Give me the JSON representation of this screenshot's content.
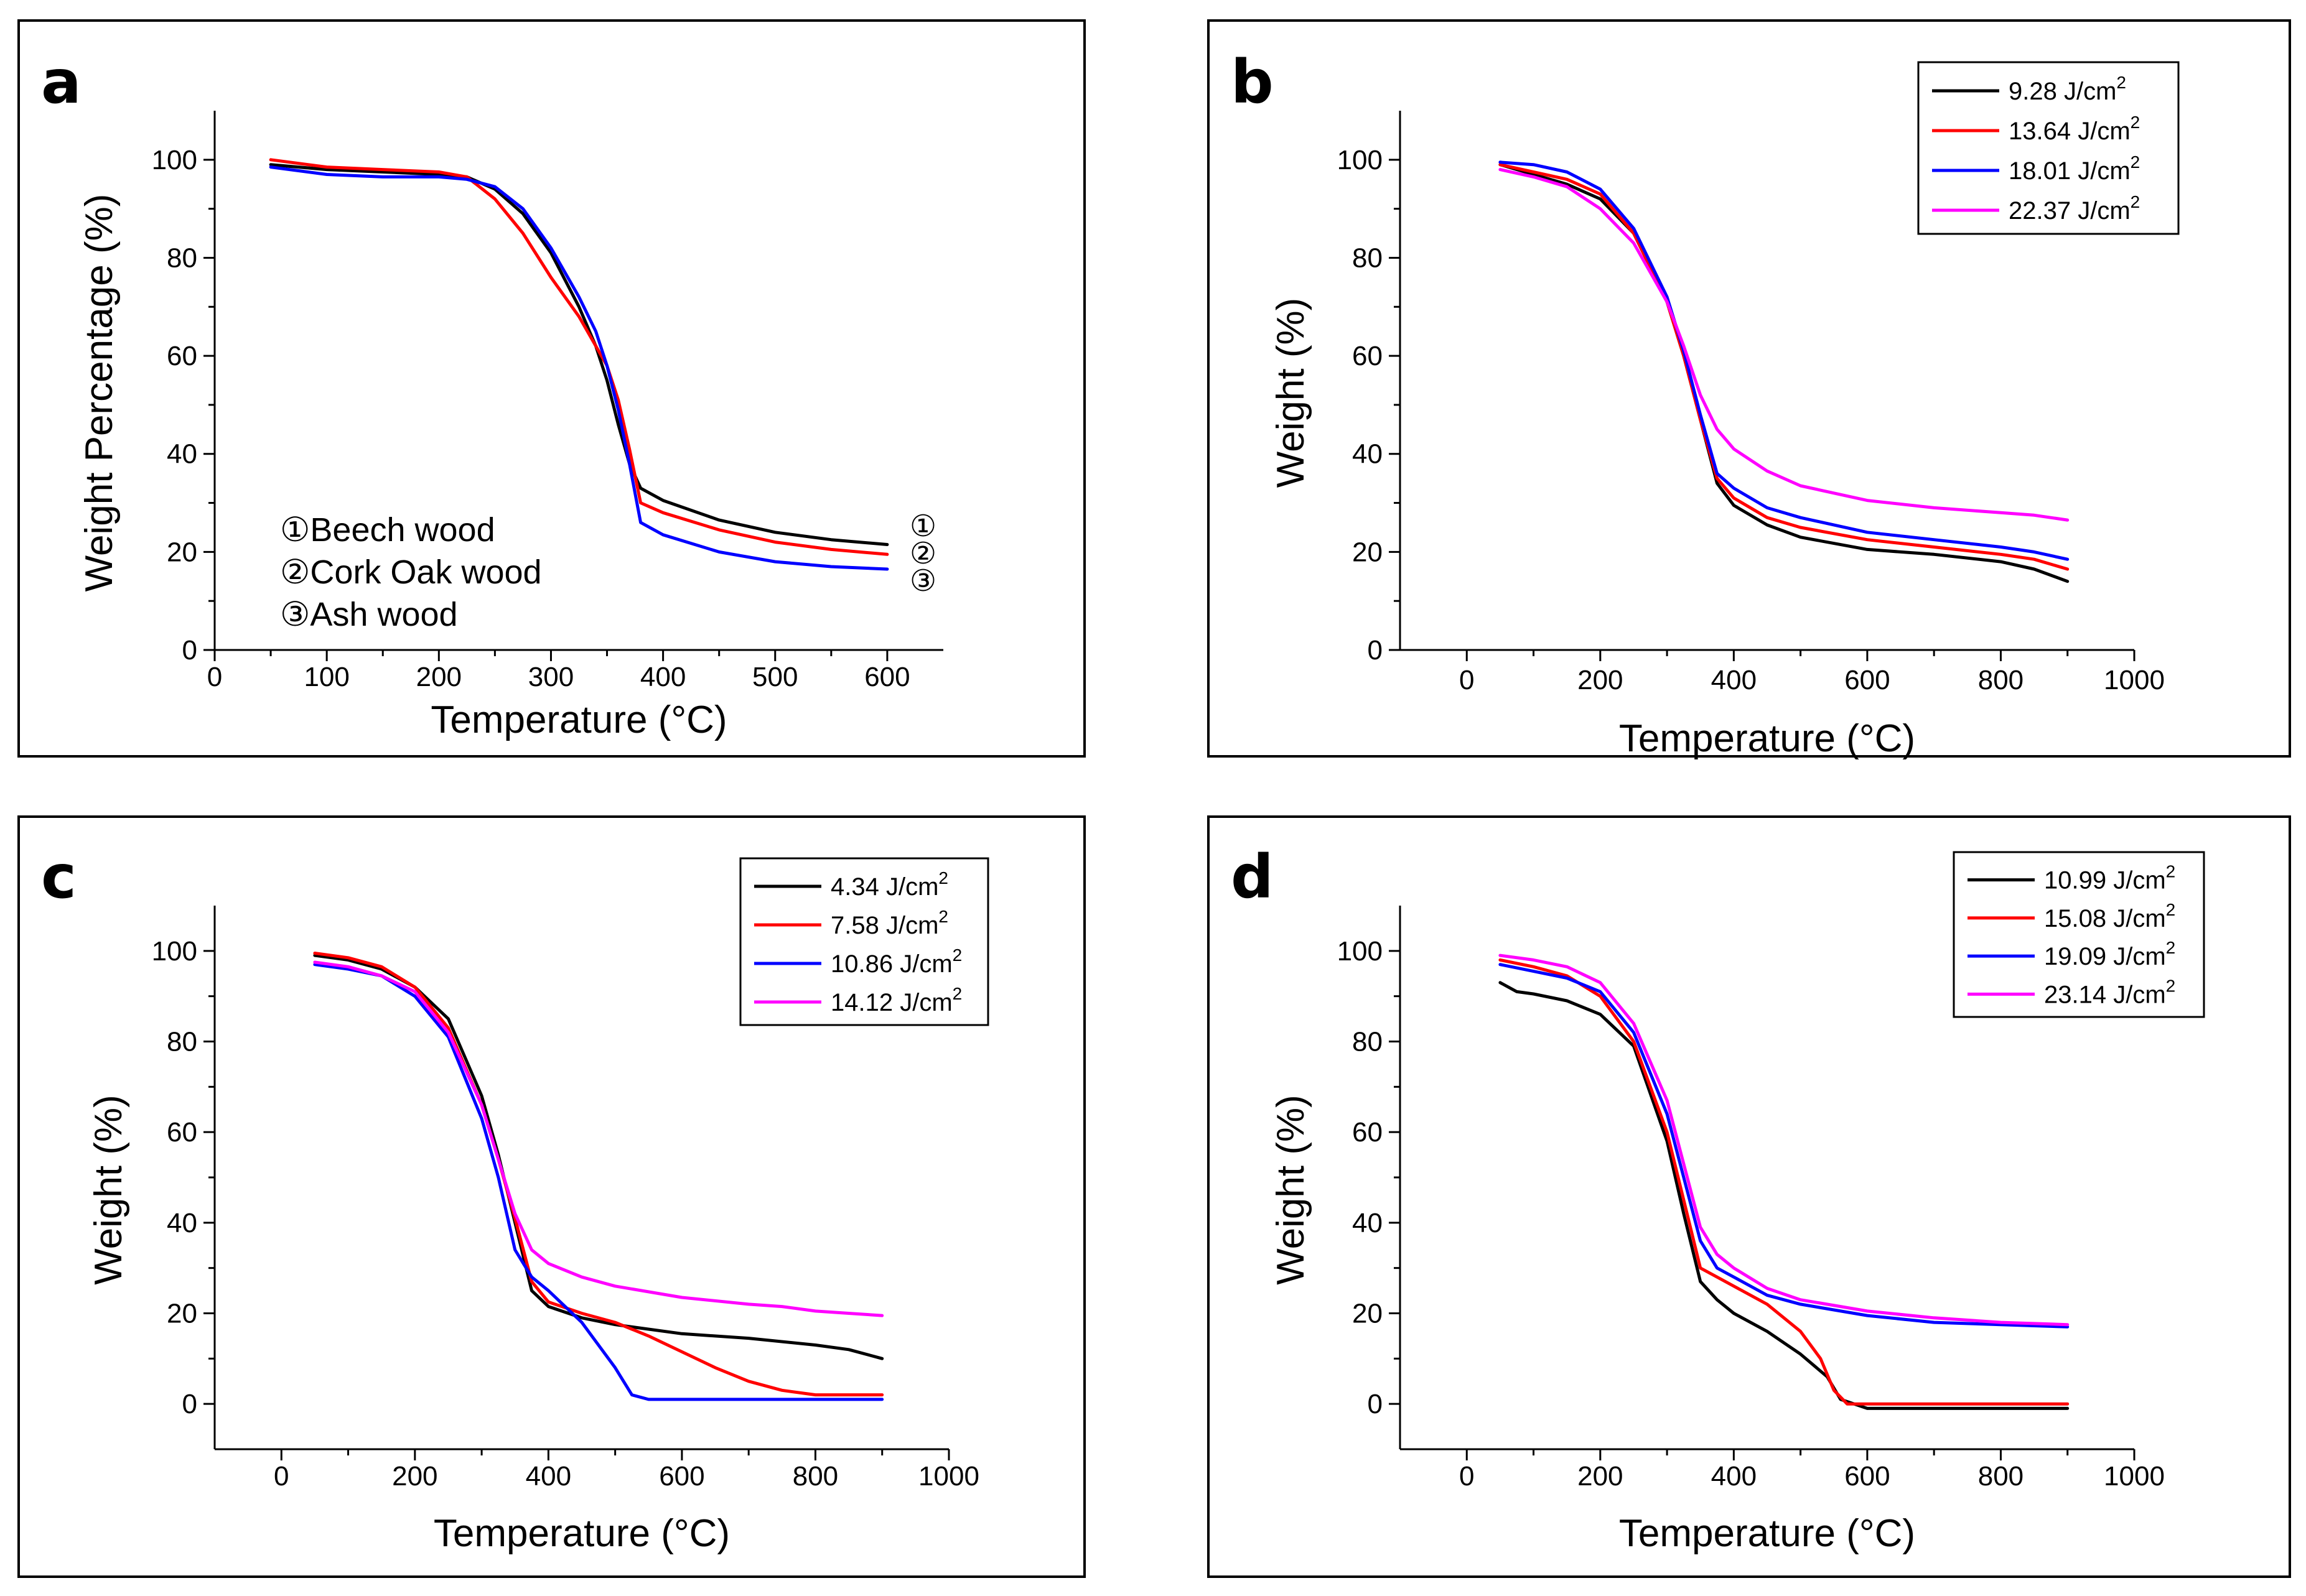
{
  "chart_data": [
    {
      "panel": "a",
      "type": "line",
      "xlabel": "Temperature (°C)",
      "ylabel": "Weight Percentage (%)",
      "xlim": [
        0,
        650
      ],
      "ylim": [
        0,
        110
      ],
      "xticks": [
        0,
        100,
        200,
        300,
        400,
        500,
        600
      ],
      "yticks": [
        0,
        20,
        40,
        60,
        80,
        100
      ],
      "annotations": [
        "①Beech wood",
        "②Cork Oak wood",
        "③Ash wood"
      ],
      "end_markers": [
        "①",
        "②",
        "③"
      ],
      "series": [
        {
          "name": "Beech wood",
          "color": "#000000",
          "x": [
            50,
            100,
            150,
            200,
            225,
            250,
            275,
            300,
            325,
            340,
            350,
            360,
            370,
            380,
            400,
            450,
            500,
            550,
            600
          ],
          "y": [
            99,
            98,
            97.5,
            97,
            96.5,
            94,
            89,
            81,
            70,
            62,
            55,
            46,
            38,
            33,
            30.5,
            26.5,
            24,
            22.5,
            21.5
          ]
        },
        {
          "name": "Cork Oak wood",
          "color": "#ff0000",
          "x": [
            50,
            100,
            150,
            200,
            225,
            250,
            275,
            300,
            325,
            340,
            350,
            360,
            370,
            380,
            400,
            450,
            500,
            550,
            600
          ],
          "y": [
            100,
            98.5,
            98,
            97.5,
            96.5,
            92,
            85,
            76,
            68,
            62,
            58,
            51,
            41,
            30,
            28,
            24.5,
            22,
            20.5,
            19.5
          ]
        },
        {
          "name": "Ash wood",
          "color": "#0000ff",
          "x": [
            50,
            100,
            150,
            200,
            225,
            250,
            275,
            300,
            325,
            340,
            350,
            360,
            370,
            380,
            400,
            450,
            500,
            550,
            600
          ],
          "y": [
            98.5,
            97,
            96.5,
            96.5,
            96,
            94.5,
            90,
            82,
            72,
            65,
            58,
            49,
            38,
            26,
            23.5,
            20,
            18,
            17,
            16.5
          ]
        }
      ]
    },
    {
      "panel": "b",
      "type": "line",
      "xlabel": "Temperature (°C)",
      "ylabel": "Weight (%)",
      "xlim": [
        -100,
        1000
      ],
      "ylim": [
        0,
        110
      ],
      "xticks": [
        0,
        200,
        400,
        600,
        800,
        1000
      ],
      "yticks": [
        0,
        20,
        40,
        60,
        80,
        100
      ],
      "series": [
        {
          "name": "9.28 J/cm",
          "sup": "2",
          "color": "#000000",
          "x": [
            50,
            100,
            150,
            200,
            250,
            300,
            325,
            350,
            375,
            400,
            450,
            500,
            600,
            700,
            800,
            850,
            900
          ],
          "y": [
            99,
            97,
            95,
            92,
            85,
            71,
            60,
            47,
            34,
            29.5,
            25.5,
            23,
            20.5,
            19.5,
            18,
            16.5,
            14
          ]
        },
        {
          "name": "13.64 J/cm",
          "sup": "2",
          "color": "#ff0000",
          "x": [
            50,
            100,
            150,
            200,
            250,
            300,
            325,
            350,
            375,
            400,
            450,
            500,
            600,
            700,
            800,
            850,
            900
          ],
          "y": [
            99,
            97.5,
            96,
            93,
            85,
            71,
            60,
            47,
            35,
            31,
            27,
            25,
            22.5,
            21,
            19.5,
            18.5,
            16.5
          ]
        },
        {
          "name": "18.01 J/cm",
          "sup": "2",
          "color": "#0000ff",
          "x": [
            50,
            100,
            150,
            200,
            250,
            300,
            325,
            350,
            375,
            400,
            450,
            500,
            600,
            700,
            800,
            850,
            900
          ],
          "y": [
            99.5,
            99,
            97.5,
            94,
            86,
            72,
            61,
            48,
            36,
            33,
            29,
            27,
            24,
            22.5,
            21,
            20,
            18.5
          ]
        },
        {
          "name": "22.37 J/cm",
          "sup": "2",
          "color": "#ff00ff",
          "x": [
            50,
            100,
            150,
            200,
            250,
            300,
            325,
            350,
            375,
            400,
            450,
            500,
            600,
            700,
            800,
            850,
            900
          ],
          "y": [
            98,
            96.5,
            94.5,
            90,
            83,
            71,
            62,
            52,
            45,
            41,
            36.5,
            33.5,
            30.5,
            29,
            28,
            27.5,
            26.5
          ]
        }
      ]
    },
    {
      "panel": "c",
      "type": "line",
      "xlabel": "Temperature (°C)",
      "ylabel": "Weight (%)",
      "xlim": [
        -100,
        1000
      ],
      "ylim": [
        -10,
        110
      ],
      "xticks": [
        0,
        200,
        400,
        600,
        800,
        1000
      ],
      "yticks": [
        0,
        20,
        40,
        60,
        80,
        100
      ],
      "series": [
        {
          "name": "4.34 J/cm",
          "sup": "2",
          "color": "#000000",
          "x": [
            50,
            100,
            150,
            200,
            250,
            300,
            325,
            350,
            375,
            400,
            450,
            500,
            600,
            700,
            800,
            850,
            900
          ],
          "y": [
            99,
            98,
            96,
            92,
            85,
            68,
            55,
            40,
            25,
            21.5,
            19,
            17.5,
            15.5,
            14.5,
            13,
            12,
            10
          ]
        },
        {
          "name": "7.58 J/cm",
          "sup": "2",
          "color": "#ff0000",
          "x": [
            50,
            100,
            150,
            200,
            250,
            300,
            325,
            350,
            375,
            400,
            450,
            500,
            550,
            600,
            650,
            700,
            750,
            800,
            850,
            900
          ],
          "y": [
            99.5,
            98.5,
            96.5,
            92,
            83,
            66,
            54,
            41,
            27,
            22.5,
            20,
            18,
            15,
            11.5,
            8,
            5,
            3,
            2,
            2,
            2
          ]
        },
        {
          "name": "10.86 J/cm",
          "sup": "2",
          "color": "#0000ff",
          "x": [
            50,
            100,
            150,
            200,
            250,
            300,
            325,
            350,
            375,
            400,
            450,
            500,
            525,
            550,
            600,
            700,
            800,
            900
          ],
          "y": [
            97,
            96,
            94.5,
            90,
            81,
            63,
            50,
            34,
            28,
            25,
            18,
            8,
            2,
            1,
            1,
            1,
            1,
            1
          ]
        },
        {
          "name": "14.12 J/cm",
          "sup": "2",
          "color": "#ff00ff",
          "x": [
            50,
            100,
            150,
            200,
            250,
            300,
            325,
            350,
            375,
            400,
            450,
            500,
            600,
            700,
            750,
            800,
            850,
            900
          ],
          "y": [
            97.5,
            96.5,
            94.5,
            91,
            82,
            66,
            54,
            42,
            34,
            31,
            28,
            26,
            23.5,
            22,
            21.5,
            20.5,
            20,
            19.5
          ]
        }
      ]
    },
    {
      "panel": "d",
      "type": "line",
      "xlabel": "Temperature (°C)",
      "ylabel": "Weight (%)",
      "xlim": [
        -100,
        1000
      ],
      "ylim": [
        -10,
        110
      ],
      "xticks": [
        0,
        200,
        400,
        600,
        800,
        1000
      ],
      "yticks": [
        0,
        20,
        40,
        60,
        80,
        100
      ],
      "series": [
        {
          "name": "10.99 J/cm",
          "sup": "2",
          "color": "#000000",
          "x": [
            50,
            75,
            100,
            150,
            200,
            250,
            300,
            325,
            350,
            375,
            400,
            450,
            500,
            540,
            560,
            600,
            700,
            800,
            900
          ],
          "y": [
            93,
            91,
            90.5,
            89,
            86,
            79,
            58,
            42,
            27,
            23,
            20,
            16,
            11,
            6,
            1,
            -1,
            -1,
            -1,
            -1
          ]
        },
        {
          "name": "15.08 J/cm",
          "sup": "2",
          "color": "#ff0000",
          "x": [
            50,
            100,
            150,
            200,
            250,
            300,
            325,
            350,
            375,
            400,
            450,
            500,
            530,
            550,
            570,
            600,
            700,
            800,
            900
          ],
          "y": [
            98,
            96.5,
            94.5,
            90,
            80,
            60,
            45,
            30,
            28,
            26,
            22,
            16,
            10,
            3,
            0,
            0,
            0,
            0,
            0
          ]
        },
        {
          "name": "19.09 J/cm",
          "sup": "2",
          "color": "#0000ff",
          "x": [
            50,
            100,
            150,
            200,
            250,
            300,
            325,
            350,
            375,
            400,
            450,
            500,
            600,
            700,
            800,
            900
          ],
          "y": [
            97,
            95.5,
            94,
            91,
            82,
            64,
            50,
            36,
            30,
            28,
            24,
            22,
            19.5,
            18,
            17.5,
            17
          ]
        },
        {
          "name": "23.14 J/cm",
          "sup": "2",
          "color": "#ff00ff",
          "x": [
            50,
            100,
            150,
            200,
            250,
            300,
            325,
            350,
            375,
            400,
            450,
            500,
            600,
            700,
            800,
            900
          ],
          "y": [
            99,
            98,
            96.5,
            93,
            84,
            67,
            53,
            39,
            33,
            30,
            25.5,
            23,
            20.5,
            19,
            18,
            17.5
          ]
        }
      ]
    }
  ]
}
